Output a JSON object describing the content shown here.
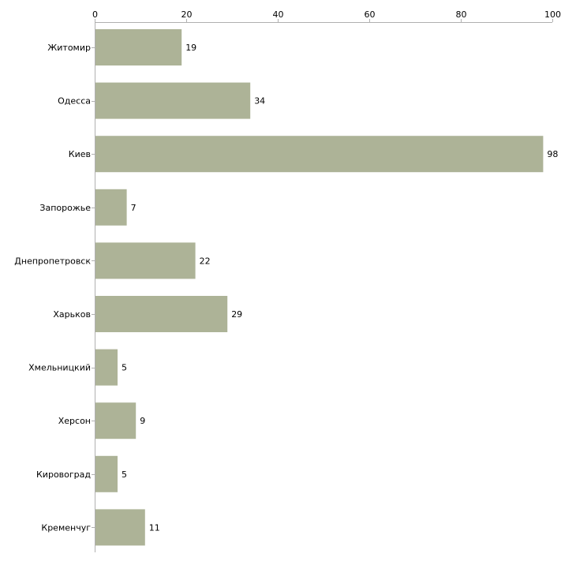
{
  "chart_data": {
    "type": "bar",
    "orientation": "horizontal",
    "title": "",
    "xlabel": "",
    "ylabel": "",
    "categories": [
      "Житомир",
      "Одесса",
      "Киев",
      "Запорожье",
      "Днепропетровск",
      "Харьков",
      "Хмельницкий",
      "Херсон",
      "Кировоград",
      "Кременчуг"
    ],
    "values": [
      19,
      34,
      98,
      7,
      22,
      29,
      5,
      9,
      5,
      11
    ],
    "value_labels": [
      "19",
      "34",
      "98",
      "7",
      "22",
      "29",
      "5",
      "9",
      "5",
      "11"
    ],
    "xlim": [
      0,
      100
    ],
    "x_ticks": [
      0,
      20,
      40,
      60,
      80,
      100
    ],
    "x_tick_labels": [
      "0",
      "20",
      "40",
      "60",
      "80",
      "100"
    ],
    "x_axis_position": "top",
    "grid": false,
    "legend": "none",
    "colors": {
      "bar": "#adb397",
      "axis": "#b0b0b0",
      "text": "#000000",
      "background": "#ffffff"
    }
  }
}
